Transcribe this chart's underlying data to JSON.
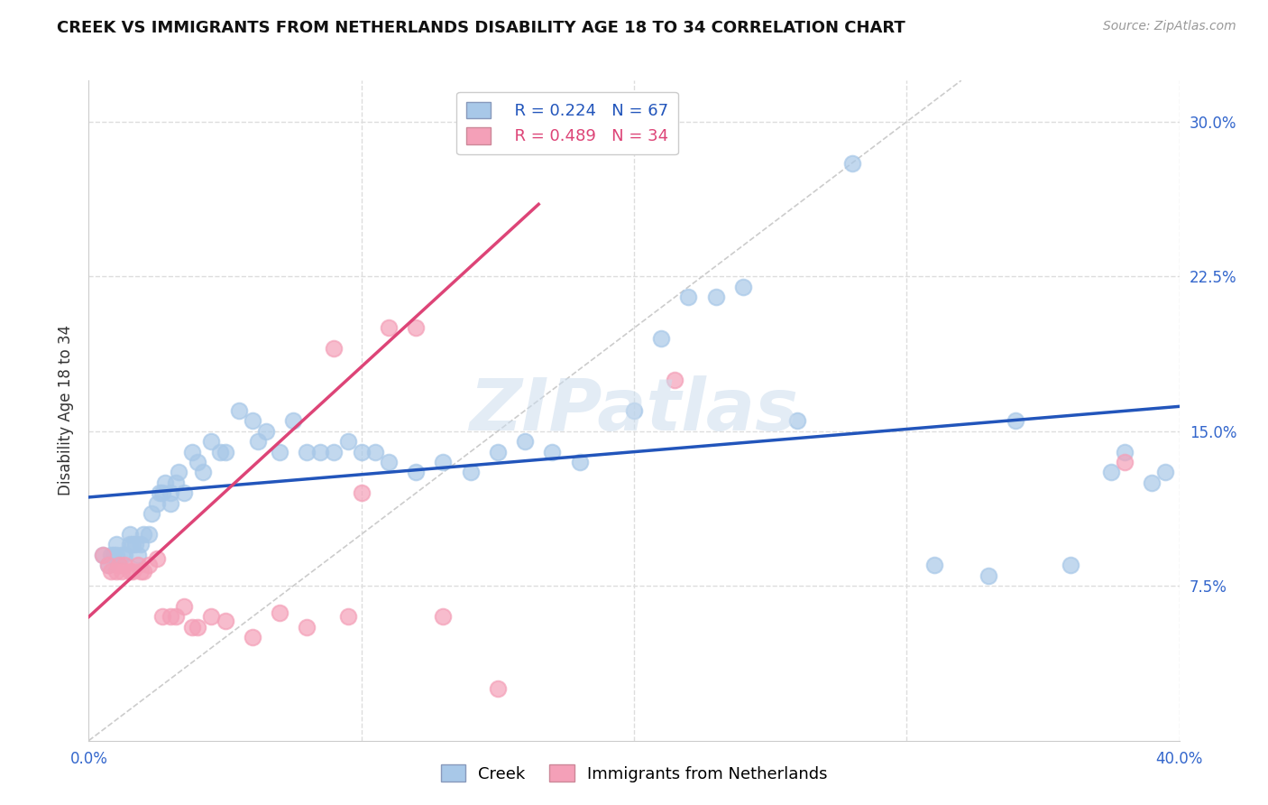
{
  "title": "CREEK VS IMMIGRANTS FROM NETHERLANDS DISABILITY AGE 18 TO 34 CORRELATION CHART",
  "source": "Source: ZipAtlas.com",
  "ylabel": "Disability Age 18 to 34",
  "legend_creek": "Creek",
  "legend_netherlands": "Immigrants from Netherlands",
  "r_creek": "R = 0.224",
  "n_creek": "N = 67",
  "r_netherlands": "R = 0.489",
  "n_netherlands": "N = 34",
  "watermark": "ZIPatlas",
  "xlim": [
    0.0,
    0.4
  ],
  "ylim": [
    0.0,
    0.32
  ],
  "yticks": [
    0.075,
    0.15,
    0.225,
    0.3
  ],
  "ytick_labels": [
    "7.5%",
    "15.0%",
    "22.5%",
    "30.0%"
  ],
  "xticks": [
    0.0,
    0.1,
    0.2,
    0.3,
    0.4
  ],
  "xtick_labels": [
    "0.0%",
    "",
    "",
    "",
    "40.0%"
  ],
  "creek_color": "#a8c8e8",
  "netherlands_color": "#f4a0b8",
  "creek_line_color": "#2255bb",
  "netherlands_line_color": "#dd4477",
  "diag_line_color": "#cccccc",
  "background_color": "#ffffff",
  "grid_color": "#dddddd",
  "creek_x": [
    0.005,
    0.007,
    0.008,
    0.009,
    0.01,
    0.01,
    0.012,
    0.013,
    0.015,
    0.015,
    0.016,
    0.017,
    0.018,
    0.019,
    0.02,
    0.022,
    0.023,
    0.025,
    0.026,
    0.027,
    0.028,
    0.03,
    0.03,
    0.032,
    0.033,
    0.035,
    0.038,
    0.04,
    0.042,
    0.045,
    0.048,
    0.05,
    0.055,
    0.06,
    0.062,
    0.065,
    0.07,
    0.075,
    0.08,
    0.085,
    0.09,
    0.095,
    0.1,
    0.105,
    0.11,
    0.12,
    0.13,
    0.14,
    0.15,
    0.16,
    0.17,
    0.18,
    0.2,
    0.21,
    0.22,
    0.23,
    0.24,
    0.26,
    0.28,
    0.31,
    0.33,
    0.34,
    0.36,
    0.375,
    0.38,
    0.39,
    0.395
  ],
  "creek_y": [
    0.09,
    0.085,
    0.09,
    0.09,
    0.095,
    0.09,
    0.09,
    0.09,
    0.1,
    0.095,
    0.095,
    0.095,
    0.09,
    0.095,
    0.1,
    0.1,
    0.11,
    0.115,
    0.12,
    0.12,
    0.125,
    0.115,
    0.12,
    0.125,
    0.13,
    0.12,
    0.14,
    0.135,
    0.13,
    0.145,
    0.14,
    0.14,
    0.16,
    0.155,
    0.145,
    0.15,
    0.14,
    0.155,
    0.14,
    0.14,
    0.14,
    0.145,
    0.14,
    0.14,
    0.135,
    0.13,
    0.135,
    0.13,
    0.14,
    0.145,
    0.14,
    0.135,
    0.16,
    0.195,
    0.215,
    0.215,
    0.22,
    0.155,
    0.28,
    0.085,
    0.08,
    0.155,
    0.085,
    0.13,
    0.14,
    0.125,
    0.13
  ],
  "netherlands_x": [
    0.005,
    0.007,
    0.008,
    0.01,
    0.011,
    0.012,
    0.013,
    0.015,
    0.016,
    0.018,
    0.019,
    0.02,
    0.022,
    0.025,
    0.027,
    0.03,
    0.032,
    0.035,
    0.038,
    0.04,
    0.045,
    0.05,
    0.06,
    0.07,
    0.08,
    0.09,
    0.095,
    0.1,
    0.11,
    0.12,
    0.13,
    0.15,
    0.215,
    0.38
  ],
  "netherlands_y": [
    0.09,
    0.085,
    0.082,
    0.082,
    0.085,
    0.082,
    0.085,
    0.082,
    0.082,
    0.085,
    0.082,
    0.082,
    0.085,
    0.088,
    0.06,
    0.06,
    0.06,
    0.065,
    0.055,
    0.055,
    0.06,
    0.058,
    0.05,
    0.062,
    0.055,
    0.19,
    0.06,
    0.12,
    0.2,
    0.2,
    0.06,
    0.025,
    0.175,
    0.135
  ],
  "creek_line_x": [
    0.0,
    0.4
  ],
  "creek_line_y": [
    0.118,
    0.162
  ],
  "neth_line_x": [
    0.0,
    0.165
  ],
  "neth_line_y": [
    0.06,
    0.26
  ]
}
